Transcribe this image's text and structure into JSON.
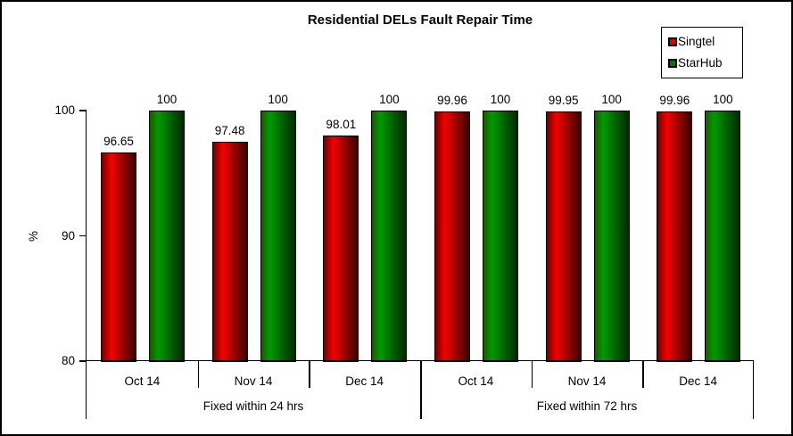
{
  "chart_data": {
    "type": "bar",
    "title": "Residential DELs Fault Repair Time",
    "ylabel": "%",
    "ylim": [
      80,
      100
    ],
    "yticks": [
      100,
      90,
      80
    ],
    "grid": false,
    "legend": {
      "position": "top-right",
      "entries": [
        "Singtel",
        "StarHub"
      ]
    },
    "group_labels": [
      "Fixed within 24 hrs",
      "Fixed within 72 hrs"
    ],
    "categories": [
      "Oct 14",
      "Nov 14",
      "Dec 14",
      "Oct 14",
      "Nov 14",
      "Dec 14"
    ],
    "series": [
      {
        "name": "Singtel",
        "color": "#e00000",
        "values": [
          96.65,
          97.48,
          98.01,
          99.96,
          99.95,
          99.96
        ]
      },
      {
        "name": "StarHub",
        "color": "#007800",
        "values": [
          100,
          100,
          100,
          100,
          100,
          100
        ]
      }
    ],
    "value_labels": [
      "96.65",
      "97.48",
      "98.01",
      "99.96",
      "99.95",
      "99.96",
      "100"
    ]
  },
  "colors": {
    "singtel": "#e00000",
    "starhub": "#007800",
    "axis": "#000000",
    "background": "#ffffff"
  }
}
